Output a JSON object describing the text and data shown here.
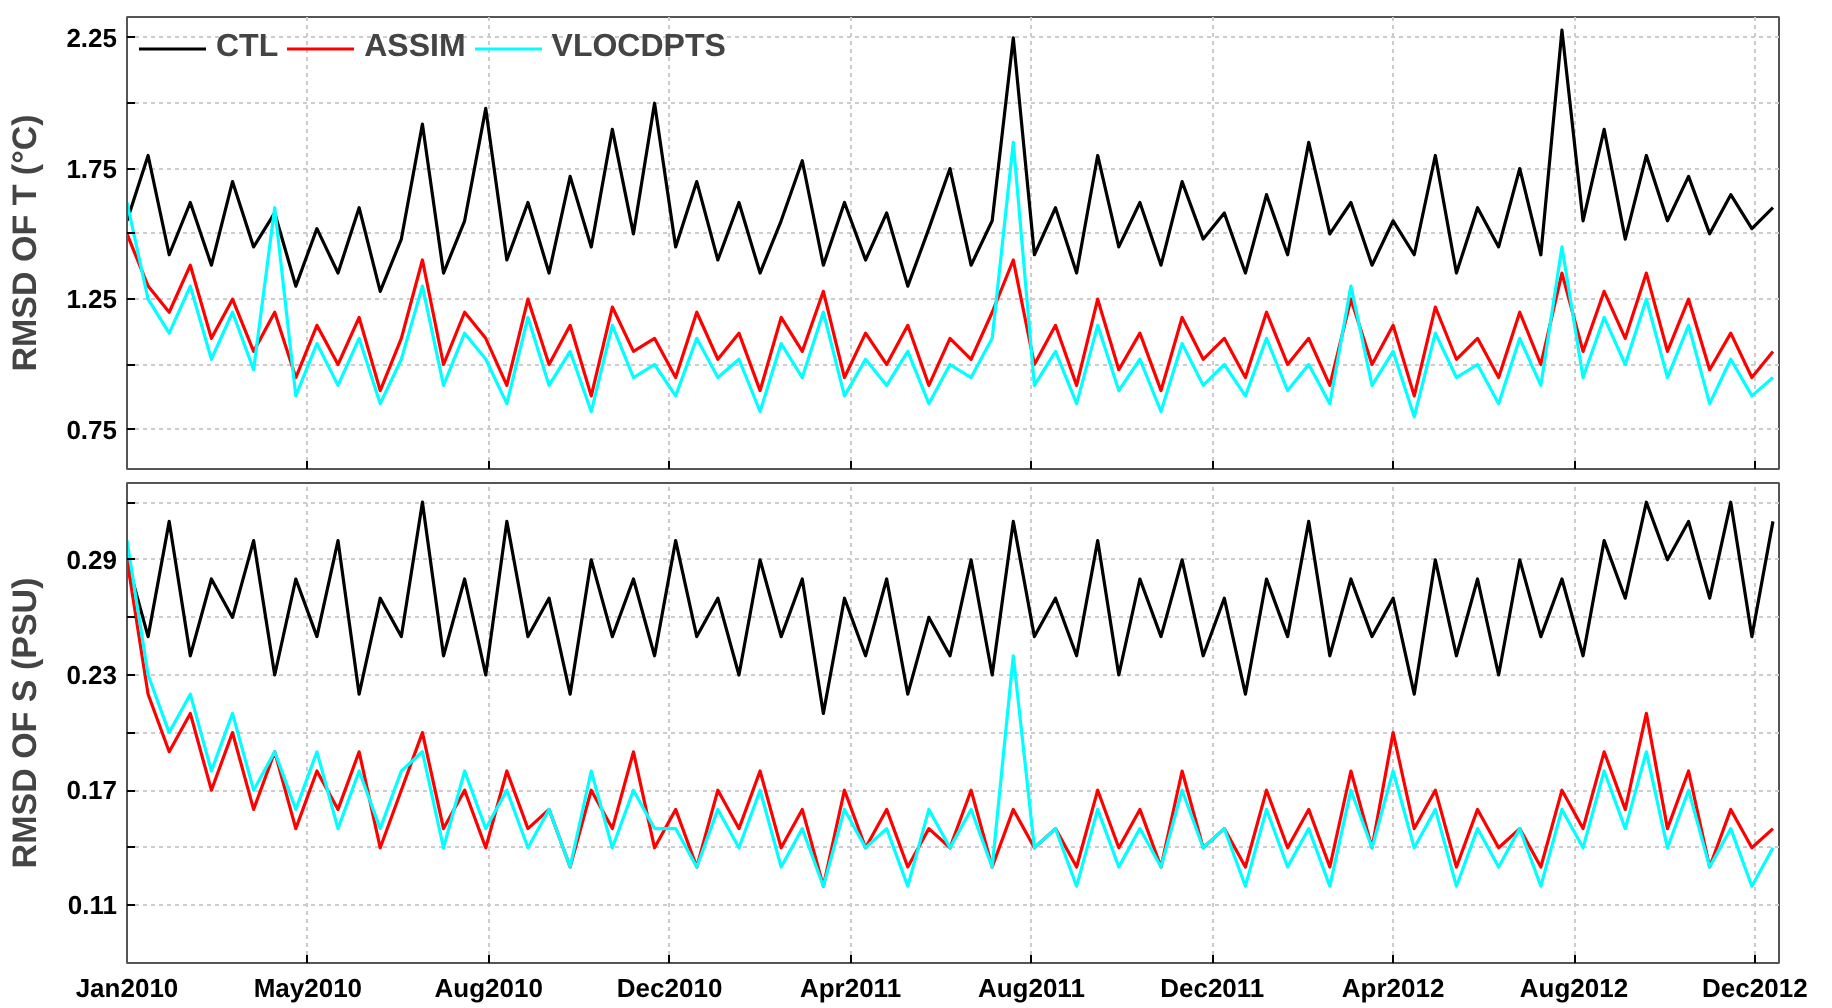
{
  "chart_data": [
    {
      "type": "line",
      "ylabel": "RMSD OF T (°C)",
      "legend": "top left",
      "grid": true,
      "tick_labels": "y",
      "line_style": "solid",
      "xlim": [
        "2010-01-01",
        "2013-01-01"
      ],
      "ylim": [
        0.6,
        2.33
      ],
      "xticks": [
        {
          "value": "2010-01-01",
          "label": null
        },
        {
          "value": "2010-05-01",
          "label": null
        },
        {
          "value": "2010-08-29",
          "label": null
        },
        {
          "value": "2010-12-27",
          "label": null
        },
        {
          "value": "2011-04-26",
          "label": null
        },
        {
          "value": "2011-08-24",
          "label": null
        },
        {
          "value": "2011-12-22",
          "label": null
        },
        {
          "value": "2012-04-20",
          "label": null
        },
        {
          "value": "2012-08-18",
          "label": null
        },
        {
          "value": "2012-12-16",
          "label": null
        }
      ],
      "yticks": [
        0.75,
        {
          "value": 1.0,
          "label": null
        },
        1.25,
        {
          "value": 1.5,
          "label": null
        },
        1.75,
        {
          "value": 2.0,
          "label": null
        },
        2.25
      ],
      "x": [
        "2010-01-01",
        "2010-01-15",
        "2010-01-29",
        "2010-02-12",
        "2010-02-26",
        "2010-03-12",
        "2010-03-26",
        "2010-04-09",
        "2010-04-23",
        "2010-05-07",
        "2010-05-21",
        "2010-06-04",
        "2010-06-18",
        "2010-07-02",
        "2010-07-16",
        "2010-07-30",
        "2010-08-13",
        "2010-08-27",
        "2010-09-10",
        "2010-09-24",
        "2010-10-08",
        "2010-10-22",
        "2010-11-05",
        "2010-11-19",
        "2010-12-03",
        "2010-12-17",
        "2010-12-31",
        "2011-01-14",
        "2011-01-28",
        "2011-02-11",
        "2011-02-25",
        "2011-03-11",
        "2011-03-25",
        "2011-04-08",
        "2011-04-22",
        "2011-05-06",
        "2011-05-20",
        "2011-06-03",
        "2011-06-17",
        "2011-07-01",
        "2011-07-15",
        "2011-07-29",
        "2011-08-12",
        "2011-08-26",
        "2011-09-09",
        "2011-09-23",
        "2011-10-07",
        "2011-10-21",
        "2011-11-04",
        "2011-11-18",
        "2011-12-02",
        "2011-12-16",
        "2011-12-30",
        "2012-01-13",
        "2012-01-27",
        "2012-02-10",
        "2012-02-24",
        "2012-03-09",
        "2012-03-23",
        "2012-04-06",
        "2012-04-20",
        "2012-05-04",
        "2012-05-18",
        "2012-06-01",
        "2012-06-15",
        "2012-06-29",
        "2012-07-13",
        "2012-07-27",
        "2012-08-10",
        "2012-08-24",
        "2012-09-07",
        "2012-09-21",
        "2012-10-05",
        "2012-10-19",
        "2012-11-02",
        "2012-11-16",
        "2012-11-30",
        "2012-12-14",
        "2012-12-28"
      ],
      "series": [
        {
          "name": "CTL",
          "color": "#000000",
          "values": [
            1.55,
            1.8,
            1.42,
            1.62,
            1.38,
            1.7,
            1.45,
            1.58,
            1.3,
            1.52,
            1.35,
            1.6,
            1.28,
            1.48,
            1.92,
            1.35,
            1.55,
            1.98,
            1.4,
            1.62,
            1.35,
            1.72,
            1.45,
            1.9,
            1.5,
            2.0,
            1.45,
            1.7,
            1.4,
            1.62,
            1.35,
            1.55,
            1.78,
            1.38,
            1.62,
            1.4,
            1.58,
            1.3,
            1.52,
            1.75,
            1.38,
            1.55,
            2.25,
            1.42,
            1.6,
            1.35,
            1.8,
            1.45,
            1.62,
            1.38,
            1.7,
            1.48,
            1.58,
            1.35,
            1.65,
            1.42,
            1.85,
            1.5,
            1.62,
            1.38,
            1.55,
            1.42,
            1.8,
            1.35,
            1.6,
            1.45,
            1.75,
            1.42,
            2.28,
            1.55,
            1.9,
            1.48,
            1.8,
            1.55,
            1.72,
            1.5,
            1.65,
            1.52,
            1.6
          ]
        },
        {
          "name": "ASSIM",
          "color": "#ff0000",
          "values": [
            1.5,
            1.3,
            1.2,
            1.38,
            1.1,
            1.25,
            1.05,
            1.2,
            0.95,
            1.15,
            1.0,
            1.18,
            0.9,
            1.1,
            1.4,
            1.0,
            1.2,
            1.1,
            0.92,
            1.25,
            1.0,
            1.15,
            0.88,
            1.22,
            1.05,
            1.1,
            0.95,
            1.2,
            1.02,
            1.12,
            0.9,
            1.18,
            1.05,
            1.28,
            0.95,
            1.12,
            1.0,
            1.15,
            0.92,
            1.1,
            1.02,
            1.2,
            1.4,
            1.0,
            1.15,
            0.92,
            1.25,
            0.98,
            1.12,
            0.9,
            1.18,
            1.02,
            1.1,
            0.95,
            1.2,
            1.0,
            1.1,
            0.92,
            1.25,
            1.0,
            1.15,
            0.88,
            1.22,
            1.02,
            1.1,
            0.95,
            1.2,
            1.0,
            1.35,
            1.05,
            1.28,
            1.1,
            1.35,
            1.05,
            1.25,
            0.98,
            1.12,
            0.95,
            1.05
          ]
        },
        {
          "name": "VLOCDPTS",
          "color": "#00ffff",
          "values": [
            1.62,
            1.25,
            1.12,
            1.3,
            1.02,
            1.2,
            0.98,
            1.6,
            0.88,
            1.08,
            0.92,
            1.1,
            0.85,
            1.02,
            1.3,
            0.92,
            1.12,
            1.02,
            0.85,
            1.18,
            0.92,
            1.05,
            0.82,
            1.15,
            0.95,
            1.0,
            0.88,
            1.1,
            0.95,
            1.02,
            0.82,
            1.08,
            0.95,
            1.2,
            0.88,
            1.02,
            0.92,
            1.05,
            0.85,
            1.0,
            0.95,
            1.1,
            1.85,
            0.92,
            1.05,
            0.85,
            1.15,
            0.9,
            1.02,
            0.82,
            1.08,
            0.92,
            1.0,
            0.88,
            1.1,
            0.9,
            1.0,
            0.85,
            1.3,
            0.92,
            1.05,
            0.8,
            1.12,
            0.95,
            1.0,
            0.85,
            1.1,
            0.92,
            1.45,
            0.95,
            1.18,
            1.0,
            1.25,
            0.95,
            1.15,
            0.85,
            1.02,
            0.88,
            0.95
          ]
        }
      ]
    },
    {
      "type": "line",
      "ylabel": "RMSD OF S (PSU)",
      "grid": true,
      "line_style": "solid",
      "xlim": [
        "2010-01-01",
        "2013-01-01"
      ],
      "ylim": [
        0.08,
        0.33
      ],
      "xticks": [
        {
          "value": "2010-01-01",
          "label": "Jan2010"
        },
        {
          "value": "2010-05-01",
          "label": "May2010"
        },
        {
          "value": "2010-08-29",
          "label": "Aug2010"
        },
        {
          "value": "2010-12-27",
          "label": "Dec2010"
        },
        {
          "value": "2011-04-26",
          "label": "Apr2011"
        },
        {
          "value": "2011-08-24",
          "label": "Aug2011"
        },
        {
          "value": "2011-12-22",
          "label": "Dec2011"
        },
        {
          "value": "2012-04-20",
          "label": "Apr2012"
        },
        {
          "value": "2012-08-18",
          "label": "Aug2012"
        },
        {
          "value": "2012-12-16",
          "label": "Dec2012"
        }
      ],
      "yticks": [
        0.11,
        {
          "value": 0.14,
          "label": null
        },
        0.17,
        {
          "value": 0.2,
          "label": null
        },
        0.23,
        {
          "value": 0.26,
          "label": null
        },
        0.29,
        {
          "value": 0.32,
          "label": null
        }
      ],
      "x": [
        "2010-01-01",
        "2010-01-15",
        "2010-01-29",
        "2010-02-12",
        "2010-02-26",
        "2010-03-12",
        "2010-03-26",
        "2010-04-09",
        "2010-04-23",
        "2010-05-07",
        "2010-05-21",
        "2010-06-04",
        "2010-06-18",
        "2010-07-02",
        "2010-07-16",
        "2010-07-30",
        "2010-08-13",
        "2010-08-27",
        "2010-09-10",
        "2010-09-24",
        "2010-10-08",
        "2010-10-22",
        "2010-11-05",
        "2010-11-19",
        "2010-12-03",
        "2010-12-17",
        "2010-12-31",
        "2011-01-14",
        "2011-01-28",
        "2011-02-11",
        "2011-02-25",
        "2011-03-11",
        "2011-03-25",
        "2011-04-08",
        "2011-04-22",
        "2011-05-06",
        "2011-05-20",
        "2011-06-03",
        "2011-06-17",
        "2011-07-01",
        "2011-07-15",
        "2011-07-29",
        "2011-08-12",
        "2011-08-26",
        "2011-09-09",
        "2011-09-23",
        "2011-10-07",
        "2011-10-21",
        "2011-11-04",
        "2011-11-18",
        "2011-12-02",
        "2011-12-16",
        "2011-12-30",
        "2012-01-13",
        "2012-01-27",
        "2012-02-10",
        "2012-02-24",
        "2012-03-09",
        "2012-03-23",
        "2012-04-06",
        "2012-04-20",
        "2012-05-04",
        "2012-05-18",
        "2012-06-01",
        "2012-06-15",
        "2012-06-29",
        "2012-07-13",
        "2012-07-27",
        "2012-08-10",
        "2012-08-24",
        "2012-09-07",
        "2012-09-21",
        "2012-10-05",
        "2012-10-19",
        "2012-11-02",
        "2012-11-16",
        "2012-11-30",
        "2012-12-14",
        "2012-12-28"
      ],
      "series": [
        {
          "color": "#000000",
          "values": [
            0.29,
            0.25,
            0.31,
            0.24,
            0.28,
            0.26,
            0.3,
            0.23,
            0.28,
            0.25,
            0.3,
            0.22,
            0.27,
            0.25,
            0.32,
            0.24,
            0.28,
            0.23,
            0.31,
            0.25,
            0.27,
            0.22,
            0.29,
            0.25,
            0.28,
            0.24,
            0.3,
            0.25,
            0.27,
            0.23,
            0.29,
            0.25,
            0.28,
            0.21,
            0.27,
            0.24,
            0.28,
            0.22,
            0.26,
            0.24,
            0.29,
            0.23,
            0.31,
            0.25,
            0.27,
            0.24,
            0.3,
            0.23,
            0.28,
            0.25,
            0.29,
            0.24,
            0.27,
            0.22,
            0.28,
            0.25,
            0.31,
            0.24,
            0.28,
            0.25,
            0.27,
            0.22,
            0.29,
            0.24,
            0.28,
            0.23,
            0.29,
            0.25,
            0.28,
            0.24,
            0.3,
            0.27,
            0.32,
            0.29,
            0.31,
            0.27,
            0.32,
            0.25,
            0.31
          ]
        },
        {
          "color": "#ff0000",
          "values": [
            0.29,
            0.22,
            0.19,
            0.21,
            0.17,
            0.2,
            0.16,
            0.19,
            0.15,
            0.18,
            0.16,
            0.19,
            0.14,
            0.17,
            0.2,
            0.15,
            0.17,
            0.14,
            0.18,
            0.15,
            0.16,
            0.13,
            0.17,
            0.15,
            0.19,
            0.14,
            0.16,
            0.13,
            0.17,
            0.15,
            0.18,
            0.14,
            0.16,
            0.12,
            0.17,
            0.14,
            0.16,
            0.13,
            0.15,
            0.14,
            0.17,
            0.13,
            0.16,
            0.14,
            0.15,
            0.13,
            0.17,
            0.14,
            0.16,
            0.13,
            0.18,
            0.14,
            0.15,
            0.13,
            0.17,
            0.14,
            0.16,
            0.13,
            0.18,
            0.14,
            0.2,
            0.15,
            0.17,
            0.13,
            0.16,
            0.14,
            0.15,
            0.13,
            0.17,
            0.15,
            0.19,
            0.16,
            0.21,
            0.15,
            0.18,
            0.13,
            0.16,
            0.14,
            0.15
          ]
        },
        {
          "color": "#00ffff",
          "values": [
            0.3,
            0.23,
            0.2,
            0.22,
            0.18,
            0.21,
            0.17,
            0.19,
            0.16,
            0.19,
            0.15,
            0.18,
            0.15,
            0.18,
            0.19,
            0.14,
            0.18,
            0.15,
            0.17,
            0.14,
            0.16,
            0.13,
            0.18,
            0.14,
            0.17,
            0.15,
            0.15,
            0.13,
            0.16,
            0.14,
            0.17,
            0.13,
            0.15,
            0.12,
            0.16,
            0.14,
            0.15,
            0.12,
            0.16,
            0.14,
            0.16,
            0.13,
            0.24,
            0.14,
            0.15,
            0.12,
            0.16,
            0.13,
            0.15,
            0.13,
            0.17,
            0.14,
            0.15,
            0.12,
            0.16,
            0.13,
            0.15,
            0.12,
            0.17,
            0.14,
            0.18,
            0.14,
            0.16,
            0.12,
            0.15,
            0.13,
            0.15,
            0.12,
            0.16,
            0.14,
            0.18,
            0.15,
            0.19,
            0.14,
            0.17,
            0.13,
            0.15,
            0.12,
            0.14
          ]
        }
      ]
    }
  ]
}
